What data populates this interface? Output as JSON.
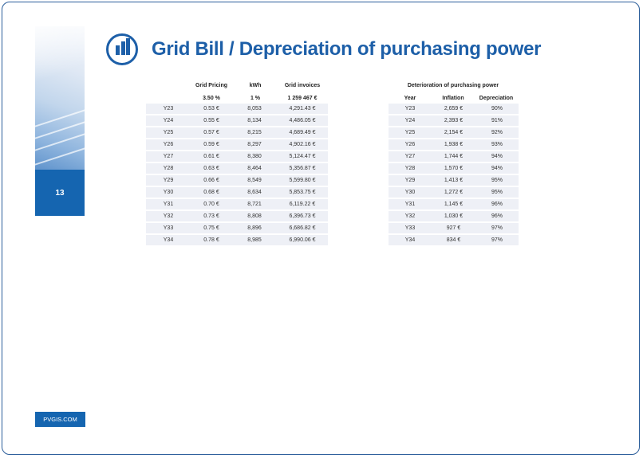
{
  "page": {
    "number": "13",
    "title": "Grid Bill / Depreciation of purchasing power",
    "footer": "PVGIS.COM"
  },
  "left_table": {
    "headers": [
      "Grid Pricing",
      "kWh",
      "Grid invoices"
    ],
    "subheaders": [
      "3.50 %",
      "1 %",
      "1 259 467 €"
    ],
    "rows": [
      [
        "Y23",
        "0.53 €",
        "8,053",
        "4,291.43 €"
      ],
      [
        "Y24",
        "0.55 €",
        "8,134",
        "4,486.05 €"
      ],
      [
        "Y25",
        "0.57 €",
        "8,215",
        "4,689.49 €"
      ],
      [
        "Y26",
        "0.59 €",
        "8,297",
        "4,902.16 €"
      ],
      [
        "Y27",
        "0.61 €",
        "8,380",
        "5,124.47 €"
      ],
      [
        "Y28",
        "0.63 €",
        "8,464",
        "5,356.87 €"
      ],
      [
        "Y29",
        "0.66 €",
        "8,549",
        "5,599.80 €"
      ],
      [
        "Y30",
        "0.68 €",
        "8,634",
        "5,853.75 €"
      ],
      [
        "Y31",
        "0.70 €",
        "8,721",
        "6,119.22 €"
      ],
      [
        "Y32",
        "0.73 €",
        "8,808",
        "6,396.73 €"
      ],
      [
        "Y33",
        "0.75 €",
        "8,896",
        "6,686.82 €"
      ],
      [
        "Y34",
        "0.78 €",
        "8,985",
        "6,990.06 €"
      ]
    ]
  },
  "right_table": {
    "title": "Deterioration of purchasing power",
    "headers": [
      "Year",
      "Inflation",
      "Depreciation"
    ],
    "rows": [
      [
        "Y23",
        "2,659 €",
        "90%"
      ],
      [
        "Y24",
        "2,393 €",
        "91%"
      ],
      [
        "Y25",
        "2,154 €",
        "92%"
      ],
      [
        "Y26",
        "1,938 €",
        "93%"
      ],
      [
        "Y27",
        "1,744 €",
        "94%"
      ],
      [
        "Y28",
        "1,570 €",
        "94%"
      ],
      [
        "Y29",
        "1,413 €",
        "95%"
      ],
      [
        "Y30",
        "1,272 €",
        "95%"
      ],
      [
        "Y31",
        "1,145 €",
        "96%"
      ],
      [
        "Y32",
        "1,030 €",
        "96%"
      ],
      [
        "Y33",
        "927 €",
        "97%"
      ],
      [
        "Y34",
        "834 €",
        "97%"
      ]
    ]
  },
  "colors": {
    "brand_blue": "#1d5fa8",
    "band_blue": "#1565b0",
    "row_bg": "#eef0f6"
  },
  "icons": {
    "logo": "bar-chart-icon"
  }
}
